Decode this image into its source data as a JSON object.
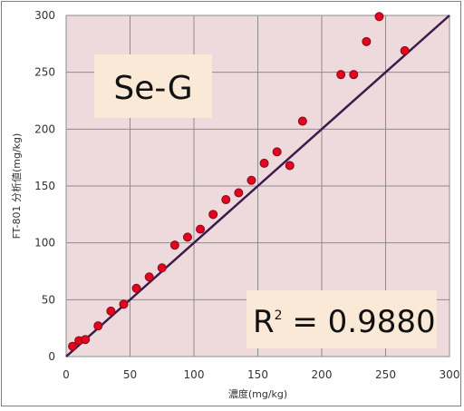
{
  "chart_data": {
    "type": "scatter",
    "title": "",
    "xlabel": "濃度(mg/kg)",
    "ylabel": "FT-801 分析値(mg/kg)",
    "xlim": [
      0,
      300
    ],
    "ylim": [
      0,
      300
    ],
    "xticks": [
      0,
      50,
      100,
      150,
      200,
      250,
      300
    ],
    "yticks": [
      0,
      50,
      100,
      150,
      200,
      250,
      300
    ],
    "grid": true,
    "legend": "none",
    "annotations": {
      "sample": "Se-G",
      "r2_label": "R",
      "r2_sup": "2",
      "r2_value": " = 0.9880"
    },
    "reference_line": {
      "x": [
        0,
        300
      ],
      "y": [
        0,
        300
      ]
    },
    "series": [
      {
        "x": [
          5,
          10,
          15,
          25,
          35,
          45,
          55,
          65,
          75,
          85,
          95,
          105,
          115,
          125,
          135,
          145,
          155,
          165,
          175,
          185,
          215,
          225,
          235,
          245,
          265
        ],
        "y": [
          9,
          14,
          15,
          27,
          40,
          46,
          60,
          70,
          78,
          98,
          105,
          112,
          125,
          138,
          144,
          155,
          170,
          180,
          168,
          207,
          248,
          248,
          277,
          299,
          269
        ]
      }
    ],
    "colors": {
      "plot_bg": "#eed9dc",
      "grid": "#8c8c8c",
      "line": "#3d1a4a",
      "marker_fill": "#e8001c",
      "marker_edge": "#7a1020",
      "annotation_bg": "#fbe9d8"
    }
  }
}
